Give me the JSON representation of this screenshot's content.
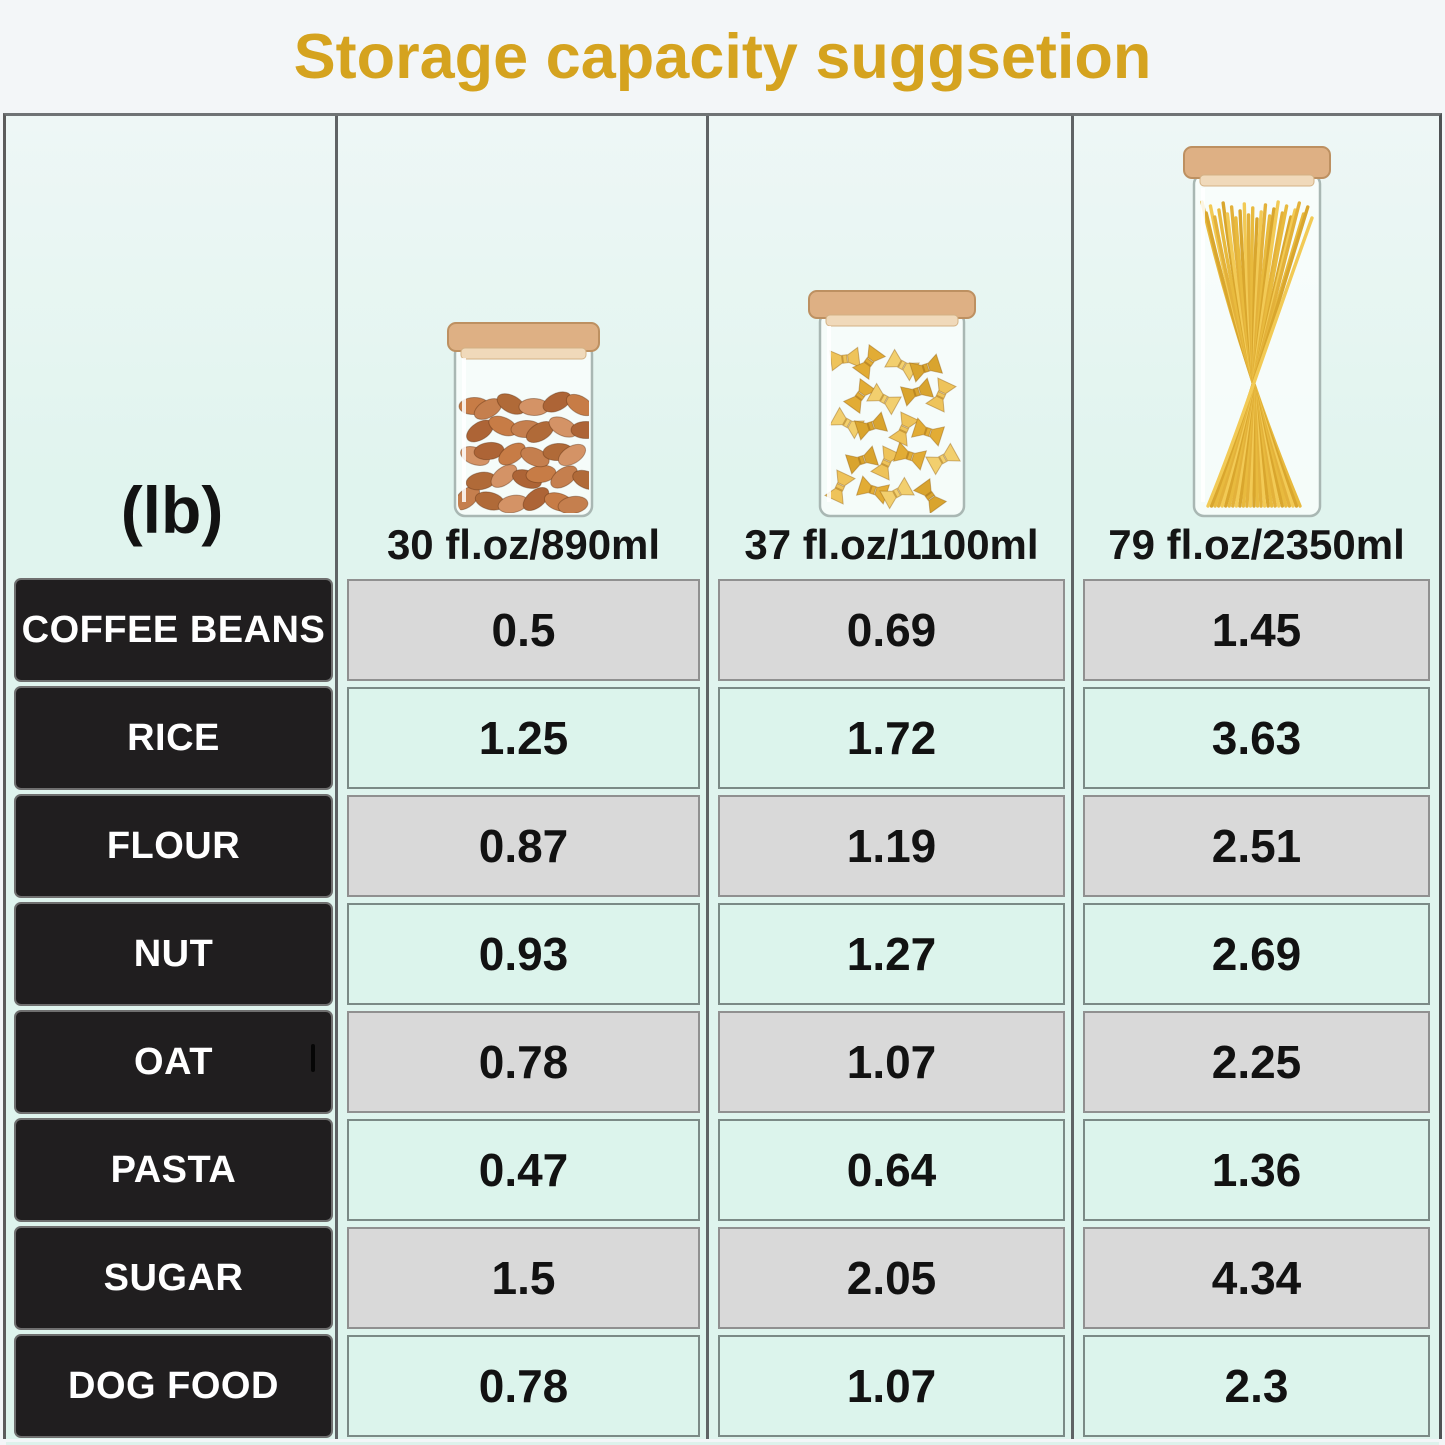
{
  "title": "Storage capacity suggsetion",
  "table": {
    "unit_label": "(lb)",
    "columns": [
      {
        "label": "30 fl.oz/890ml",
        "icon": "almond-jar-icon"
      },
      {
        "label": "37 fl.oz/1100ml",
        "icon": "farfalle-jar-icon"
      },
      {
        "label": "79 fl.oz/2350ml",
        "icon": "spaghetti-jar-icon"
      }
    ],
    "rows": [
      {
        "label": "COFFEE BEANS",
        "values": [
          "0.5",
          "0.69",
          "1.45"
        ]
      },
      {
        "label": "RICE",
        "values": [
          "1.25",
          "1.72",
          "3.63"
        ]
      },
      {
        "label": "FLOUR",
        "values": [
          "0.87",
          "1.19",
          "2.51"
        ]
      },
      {
        "label": "NUT",
        "values": [
          "0.93",
          "1.27",
          "2.69"
        ]
      },
      {
        "label": "OAT",
        "values": [
          "0.78",
          "1.07",
          "2.25"
        ]
      },
      {
        "label": "PASTA",
        "values": [
          "0.47",
          "0.64",
          "1.36"
        ]
      },
      {
        "label": "SUGAR",
        "values": [
          "1.5",
          "2.05",
          "4.34"
        ]
      },
      {
        "label": "DOG FOOD",
        "values": [
          "0.78",
          "1.07",
          "2.3"
        ]
      }
    ]
  },
  "chart_data": {
    "type": "table",
    "title": "Storage capacity suggsetion",
    "unit": "lb",
    "columns": [
      "30 fl.oz/890ml",
      "37 fl.oz/1100ml",
      "79 fl.oz/2350ml"
    ],
    "rows": [
      "COFFEE BEANS",
      "RICE",
      "FLOUR",
      "NUT",
      "OAT",
      "PASTA",
      "SUGAR",
      "DOG FOOD"
    ],
    "values": [
      [
        0.5,
        0.69,
        1.45
      ],
      [
        1.25,
        1.72,
        3.63
      ],
      [
        0.87,
        1.19,
        2.51
      ],
      [
        0.93,
        1.27,
        2.69
      ],
      [
        0.78,
        1.07,
        2.25
      ],
      [
        0.47,
        0.64,
        1.36
      ],
      [
        1.5,
        2.05,
        4.34
      ],
      [
        0.78,
        1.07,
        2.3
      ]
    ]
  },
  "colors": {
    "accent_gold": "#d5a31f",
    "row_black": "#201e1f",
    "row_gray": "#d9d9d9",
    "row_mint": "#dcf4ec",
    "table_mint": "#def4ed",
    "lid_wood": "#deb084",
    "almond_brown": "#c57f4e",
    "pasta_gold": "#eec35a",
    "spaghetti_gold": "#e8ba3e"
  }
}
